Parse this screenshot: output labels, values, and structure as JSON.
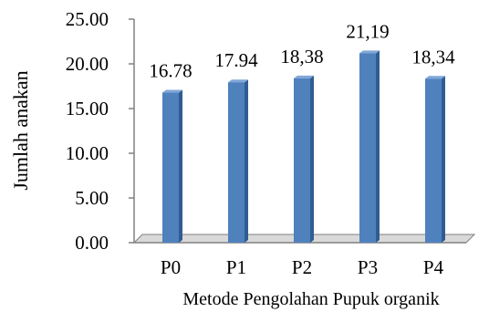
{
  "chart_data": {
    "type": "bar",
    "categories": [
      "P0",
      "P1",
      "P2",
      "P3",
      "P4"
    ],
    "values": [
      16.78,
      17.94,
      18.38,
      21.19,
      18.34
    ],
    "data_labels": [
      "16.78",
      "17.94",
      "18,38",
      "21,19",
      "18,34"
    ],
    "title": "",
    "xlabel": "Metode Pengolahan Pupuk organik",
    "ylabel": "Jumlah anakan",
    "ylim": [
      0,
      25
    ],
    "y_ticks": [
      "0.00",
      "5.00",
      "10.00",
      "15.00",
      "20.00",
      "25.00"
    ],
    "grid": false,
    "legend": "none",
    "style": "3d",
    "colors": {
      "bar_front": "#4f81bd",
      "bar_side": "#2f5d91",
      "bar_top": "#7fa7d9",
      "floor": "#d9d9d9",
      "axis": "#808080"
    }
  }
}
